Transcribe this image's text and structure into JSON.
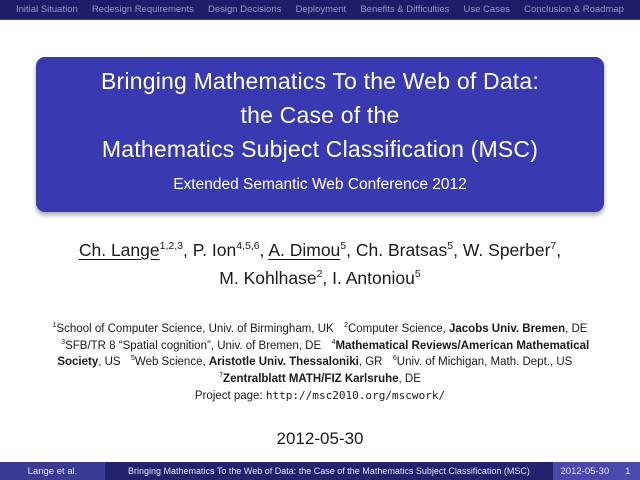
{
  "header": {
    "sections": [
      "Initial Situation",
      "Redesign Requirements",
      "Design Decisions",
      "Deployment",
      "Benefits & Difficulties",
      "Use Cases",
      "Conclusion & Roadmap"
    ]
  },
  "title_block": {
    "title_lines": [
      "Bringing Mathematics To the Web of Data:",
      "the Case of the",
      "Mathematics Subject Classification (MSC)"
    ],
    "subtitle": "Extended Semantic Web Conference 2012"
  },
  "authors": {
    "segments": [
      {
        "t": "Ch. Lange",
        "u": true
      },
      {
        "t": "1,2,3",
        "s": true
      },
      {
        "t": ", "
      },
      {
        "t": "P. Ion"
      },
      {
        "t": "4,5,6",
        "s": true
      },
      {
        "t": ", "
      },
      {
        "t": "A. Dimou",
        "u": true
      },
      {
        "t": "5",
        "s": true
      },
      {
        "t": ", "
      },
      {
        "t": "Ch. Bratsas"
      },
      {
        "t": "5",
        "s": true
      },
      {
        "t": ", "
      },
      {
        "t": "W. Sperber"
      },
      {
        "t": "7",
        "s": true
      },
      {
        "t": ","
      },
      {
        "br": true
      },
      {
        "t": "M. Kohlhase"
      },
      {
        "t": "2",
        "s": true
      },
      {
        "t": ", "
      },
      {
        "t": "I. Antoniou"
      },
      {
        "t": "5",
        "s": true
      }
    ]
  },
  "affiliations": {
    "segments": [
      {
        "t": "1",
        "s": true
      },
      {
        "t": "School of Computer Science, Univ. of Birmingham, UK"
      },
      {
        "gap": true
      },
      {
        "t": "2",
        "s": true
      },
      {
        "t": "Computer Science, "
      },
      {
        "t": "Jacobs Univ. Bremen",
        "b": true
      },
      {
        "t": ", DE"
      },
      {
        "gap": true
      },
      {
        "t": "3",
        "s": true
      },
      {
        "t": "SFB/TR 8 “Spatial cognition”, Univ. of Bremen, DE"
      },
      {
        "gap": true
      },
      {
        "t": "4",
        "s": true
      },
      {
        "t": "Mathematical Reviews/American Mathematical Society",
        "b": true
      },
      {
        "t": ", US"
      },
      {
        "gap": true
      },
      {
        "t": "5",
        "s": true
      },
      {
        "t": "Web Science, "
      },
      {
        "t": "Aristotle Univ. Thessaloniki",
        "b": true
      },
      {
        "t": ", GR"
      },
      {
        "gap": true
      },
      {
        "t": "6",
        "s": true
      },
      {
        "t": "Univ. of Michigan, Math. Dept., US"
      },
      {
        "gap": true
      },
      {
        "t": "7",
        "s": true
      },
      {
        "t": "Zentralblatt MATH/FIZ Karlsruhe",
        "b": true
      },
      {
        "t": ", DE"
      }
    ]
  },
  "project": {
    "segments": [
      {
        "t": "Project page: "
      },
      {
        "t": "http://msc2010.org/mscwork/",
        "m": true,
        "link": true,
        "name": "project-url"
      }
    ]
  },
  "date": "2012-05-30",
  "footer": {
    "authors_short": "Lange et al.",
    "title_short": "Bringing Mathematics To the Web of Data: the Case of the Mathematics Subject Classification (MSC)",
    "date": "2012-05-30",
    "page": "1"
  },
  "colors": {
    "page_bg": "#ffffff",
    "header_bg": "#1e1e68",
    "header_text": "#9595c8",
    "header_border": "#3f3f9e",
    "box_bg": "#3939b2",
    "box_text": "#ffffff",
    "body_text": "#1a1a1a",
    "footer_left_bg": "#3b3b93",
    "footer_mid_bg": "#22226d",
    "footer_right_bg": "#4a4aad",
    "footer_text": "#e3e3f3"
  }
}
